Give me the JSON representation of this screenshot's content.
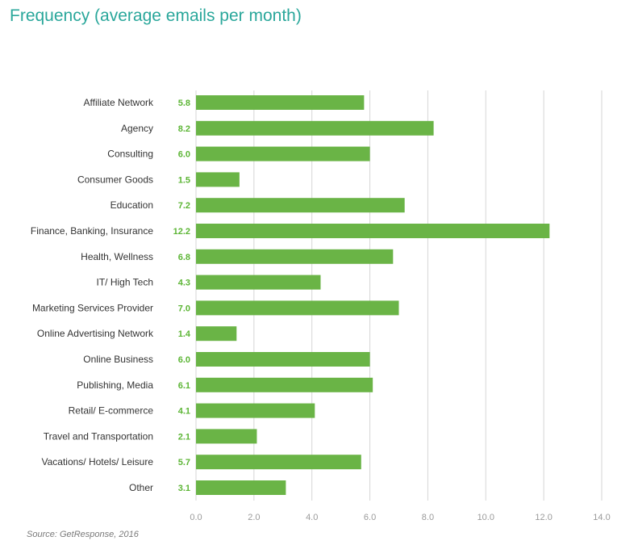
{
  "chart_data": {
    "type": "bar",
    "orientation": "horizontal",
    "title": "Frequency (average emails per month)",
    "source": "Source: GetResponse, 2016",
    "categories": [
      "Affiliate Network",
      "Agency",
      "Consulting",
      "Consumer Goods",
      "Education",
      "Finance, Banking, Insurance",
      "Health, Wellness",
      "IT/ High Tech",
      "Marketing Services Provider",
      "Online Advertising Network",
      "Online Business",
      "Publishing, Media",
      "Retail/ E-commerce",
      "Travel and Transportation",
      "Vacations/ Hotels/ Leisure",
      "Other"
    ],
    "values": [
      5.8,
      8.2,
      6.0,
      1.5,
      7.2,
      12.2,
      6.8,
      4.3,
      7.0,
      1.4,
      6.0,
      6.1,
      4.1,
      2.1,
      5.7,
      3.1
    ],
    "value_labels": [
      "5.8",
      "8.2",
      "6.0",
      "1.5",
      "7.2",
      "12.2",
      "6.8",
      "4.3",
      "7.0",
      "1.4",
      "6.0",
      "6.1",
      "4.1",
      "2.1",
      "5.7",
      "3.1"
    ],
    "xticks": [
      0,
      2,
      4,
      6,
      8,
      10,
      12,
      14
    ],
    "xtick_labels": [
      "0.0",
      "2.0",
      "4.0",
      "6.0",
      "8.0",
      "10.0",
      "12.0",
      "14.0"
    ],
    "xlim": [
      0,
      14
    ],
    "grid": true,
    "bar_color": "#6ab446",
    "value_label_color": "#5cb535",
    "title_color": "#2aa79b"
  }
}
